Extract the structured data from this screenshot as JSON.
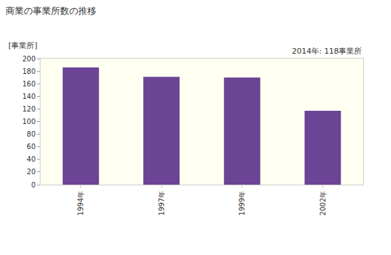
{
  "chart_data": {
    "type": "bar",
    "title": "商業の事業所数の推移",
    "ylabel": "[事業所]",
    "annotations": [
      "2014年: 118事業所"
    ],
    "categories": [
      "1994年",
      "1997年",
      "1999年",
      "2002年"
    ],
    "values": [
      186,
      171,
      170,
      117
    ],
    "color": "#6b4495",
    "ylim": [
      0,
      200
    ],
    "yticks": [
      0,
      20,
      40,
      60,
      80,
      100,
      120,
      140,
      160,
      180,
      200
    ],
    "grid": false
  }
}
